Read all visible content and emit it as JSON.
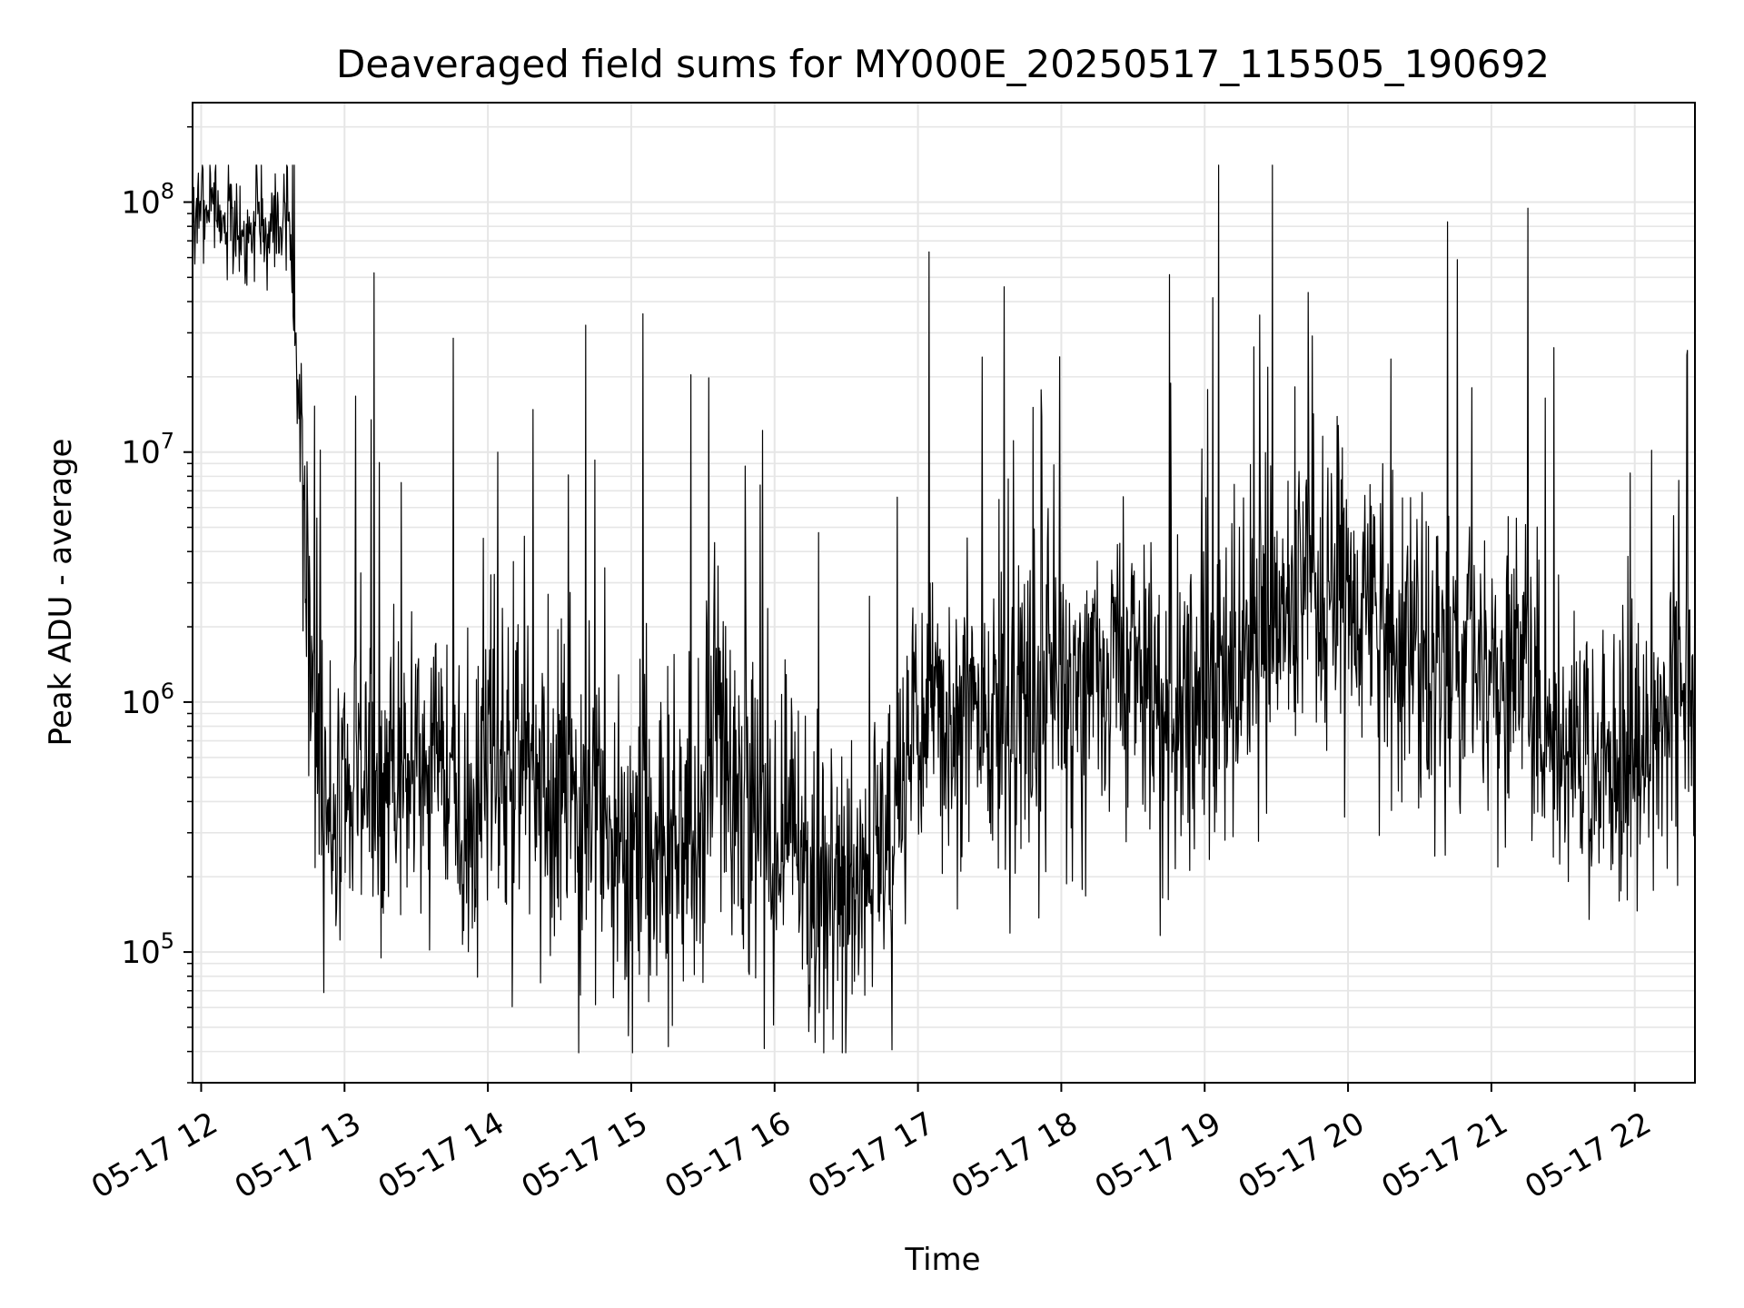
{
  "chart_data": {
    "type": "line",
    "title": "Deaveraged field sums for MY000E_20250517_115505_190692",
    "xlabel": "Time",
    "ylabel": "Peak ADU - average",
    "yscale": "log",
    "grid": true,
    "line_color": "#000000",
    "grid_color": "#e6e6e6",
    "xlim_hours": [
      11.94,
      22.42
    ],
    "ylim": [
      30000,
      250000000
    ],
    "x_ticks": [
      {
        "hour": 12,
        "label": "05-17 12"
      },
      {
        "hour": 13,
        "label": "05-17 13"
      },
      {
        "hour": 14,
        "label": "05-17 14"
      },
      {
        "hour": 15,
        "label": "05-17 15"
      },
      {
        "hour": 16,
        "label": "05-17 16"
      },
      {
        "hour": 17,
        "label": "05-17 17"
      },
      {
        "hour": 18,
        "label": "05-17 18"
      },
      {
        "hour": 19,
        "label": "05-17 19"
      },
      {
        "hour": 20,
        "label": "05-17 20"
      },
      {
        "hour": 21,
        "label": "05-17 21"
      },
      {
        "hour": 22,
        "label": "05-17 22"
      }
    ],
    "y_ticks": [
      {
        "value": 100000,
        "base": "10",
        "exp": "5"
      },
      {
        "value": 1000000,
        "base": "10",
        "exp": "6"
      },
      {
        "value": 10000000,
        "base": "10",
        "exp": "7"
      },
      {
        "value": 100000000,
        "base": "10",
        "exp": "8"
      }
    ],
    "x_unit": "hour of 2025-05-17",
    "series": [
      {
        "x": [
          11.94,
          12.0,
          12.1,
          12.2,
          12.3,
          12.4,
          12.5,
          12.6,
          12.7,
          12.75,
          12.8,
          12.85,
          12.9,
          13.0,
          13.25,
          13.5,
          13.75,
          13.85,
          14.0,
          14.25,
          14.5,
          14.75,
          15.0,
          15.25,
          15.5,
          15.6,
          15.75,
          16.0,
          16.25,
          16.5,
          16.7,
          16.85,
          17.0,
          17.25,
          17.5,
          17.75,
          18.0,
          18.25,
          18.5,
          18.75,
          19.0,
          19.25,
          19.5,
          19.75,
          20.0,
          20.25,
          20.5,
          20.75,
          21.0,
          21.25,
          21.5,
          21.75,
          22.0,
          22.25,
          22.42
        ],
        "y": [
          80000000,
          100000000,
          90000000,
          80000000,
          75000000,
          80000000,
          85000000,
          95000000,
          10000000,
          3000000,
          700000,
          400000,
          350000,
          450000,
          500000,
          550000,
          450000,
          200000,
          600000,
          400000,
          350000,
          300000,
          260000,
          250000,
          300000,
          800000,
          400000,
          300000,
          200000,
          180000,
          200000,
          350000,
          900000,
          800000,
          700000,
          800000,
          900000,
          1200000,
          1500000,
          800000,
          1100000,
          1500000,
          2200000,
          2500000,
          2500000,
          2000000,
          1500000,
          1300000,
          1000000,
          1200000,
          700000,
          500000,
          650000,
          900000,
          1200000
        ],
        "noise_decades": 0.45
      }
    ]
  }
}
